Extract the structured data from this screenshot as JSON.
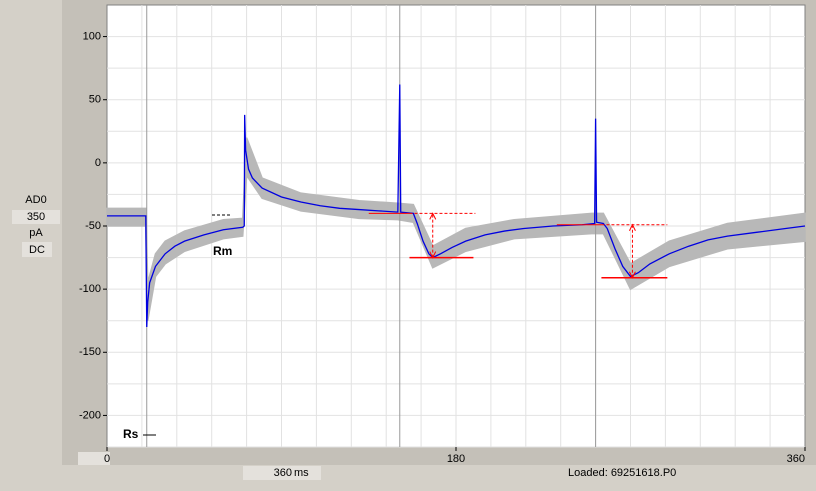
{
  "ui": {
    "channel": "AD0",
    "range": 350,
    "unit": "pA",
    "coupling": "DC",
    "sweep_length": 360,
    "sweep_unit": "ms",
    "status": "Loaded: 69251618.P0"
  },
  "chart_data": {
    "type": "line",
    "xlim": [
      0,
      360
    ],
    "xticks": [
      0,
      180,
      360
    ],
    "ylim": [
      -225,
      125
    ],
    "yticks": [
      -200,
      -150,
      -100,
      -50,
      0,
      50,
      100
    ],
    "grid": true,
    "xgrid_step": 18,
    "ygrid_step": 25,
    "annotations": [
      "Rm",
      "Rs"
    ],
    "cursors": [
      20.5,
      151,
      252
    ],
    "cursor_color": "#9a9a9a",
    "band": {
      "color": "#b8b8b8",
      "x": [
        0,
        20,
        21,
        25,
        30,
        40,
        60,
        70,
        72,
        80,
        100,
        130,
        150,
        158,
        168,
        185,
        210,
        250,
        256,
        270,
        290,
        320,
        360
      ],
      "lower": [
        -50,
        -50,
        -125,
        -90,
        -80,
        -70,
        -60,
        -58,
        -10,
        -28,
        -38,
        -44,
        -45,
        -47,
        -83,
        -70,
        -60,
        -56,
        -56,
        -100,
        -82,
        -68,
        -62
      ],
      "upper": [
        -36,
        -36,
        -95,
        -72,
        -62,
        -54,
        -45,
        -44,
        20,
        -12,
        -24,
        -30,
        -32,
        -33,
        -66,
        -52,
        -45,
        -40,
        -40,
        -80,
        -62,
        -48,
        -40
      ]
    },
    "series": [
      {
        "color": "#0000e0",
        "x": [
          0,
          10,
          20,
          20.5,
          21,
          22,
          25,
          30,
          35,
          40,
          50,
          60,
          70,
          70.8,
          71,
          71.5,
          73,
          75,
          80,
          90,
          100,
          110,
          120,
          130,
          140,
          150,
          151,
          151.5,
          158,
          160,
          163,
          166,
          168,
          172,
          178,
          185,
          195,
          205,
          215,
          230,
          245,
          251.5,
          252,
          252.5,
          256,
          258,
          262,
          266,
          270,
          274,
          280,
          290,
          300,
          310,
          320,
          335,
          350,
          360
        ],
        "values": [
          -42,
          -42,
          -42,
          -130,
          -110,
          -95,
          -82,
          -72,
          -66,
          -62,
          -57,
          -53,
          -51,
          -50,
          38,
          10,
          -5,
          -12,
          -20,
          -27,
          -31,
          -34,
          -36,
          -37,
          -38,
          -39,
          62,
          -39,
          -40,
          -48,
          -62,
          -72,
          -75,
          -72,
          -67,
          -62,
          -57,
          -54,
          -52,
          -50,
          -49,
          -48,
          35,
          -47,
          -48,
          -52,
          -68,
          -82,
          -90,
          -87,
          -80,
          -72,
          -66,
          -61,
          -58,
          -55,
          -52,
          -50
        ]
      }
    ],
    "measurements": {
      "color": "#ff0000",
      "items": [
        {
          "x_start": 135,
          "x_end": 190,
          "baseline": -40,
          "peak_start": 156,
          "peak_end": 189,
          "peak": -75,
          "x_arrow": 168
        },
        {
          "x_start": 232,
          "x_end": 289,
          "baseline": -49,
          "peak_start": 255,
          "peak_end": 289,
          "peak": -91,
          "x_arrow": 271
        }
      ]
    }
  }
}
